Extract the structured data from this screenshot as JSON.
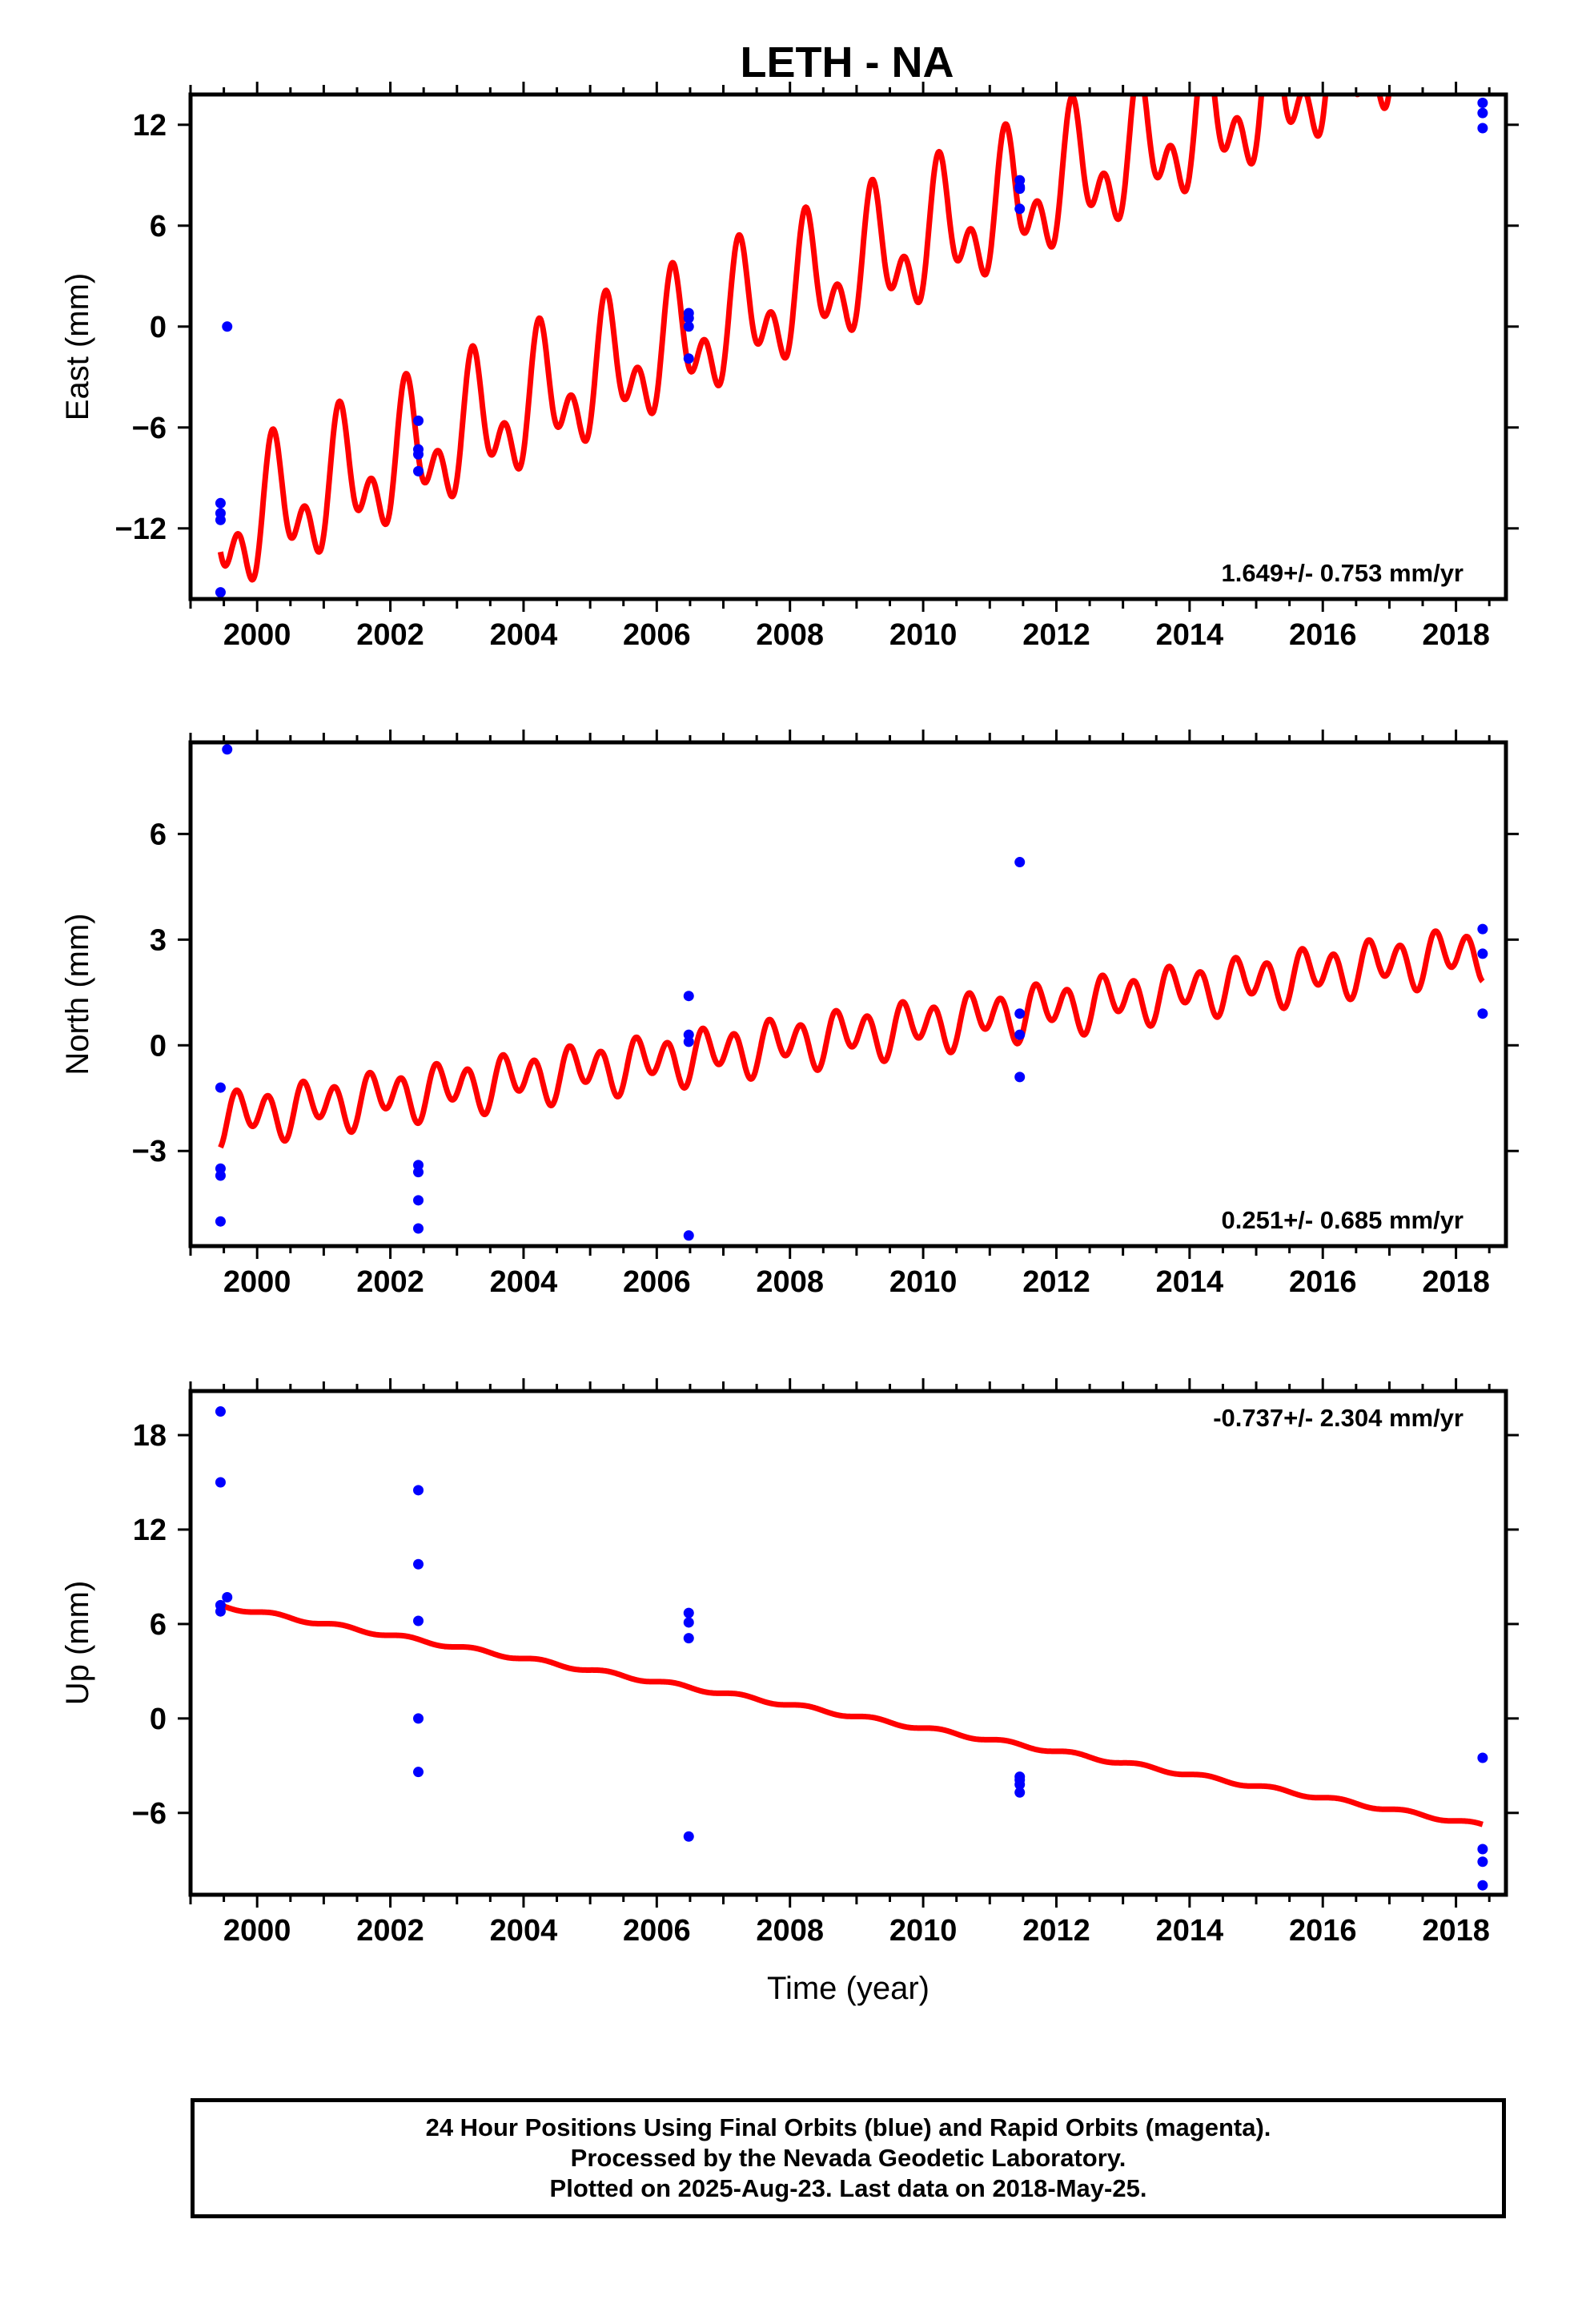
{
  "title": "LETH - NA",
  "colors": {
    "final_orbits": "#0000ff",
    "model": "#ff0000",
    "frame": "#000000"
  },
  "chart_data": [
    {
      "type": "scatter",
      "panel": "east",
      "ylabel": "East (mm)",
      "xlim": [
        1999.0,
        2018.75
      ],
      "ylim": [
        -16.2,
        13.8
      ],
      "yticks": [
        -12,
        -6,
        0,
        6,
        12
      ],
      "xticks": [
        2000,
        2002,
        2004,
        2006,
        2008,
        2010,
        2012,
        2014,
        2016,
        2018
      ],
      "rate_label": "1.649+/- 0.753 mm/yr",
      "series": [
        {
          "style": "points",
          "x": [
            1999.45,
            1999.45,
            1999.45,
            1999.45,
            1999.55,
            2002.42,
            2002.42,
            2002.42,
            2002.42,
            2006.48,
            2006.48,
            2006.48,
            2006.48,
            2011.45,
            2011.45,
            2011.45,
            2011.45,
            2018.4,
            2018.4,
            2018.4
          ],
          "y": [
            -10.5,
            -11.1,
            -11.5,
            -15.8,
            0.0,
            -5.6,
            -7.3,
            -7.6,
            -8.6,
            0.8,
            0.5,
            0.0,
            -1.9,
            8.7,
            8.2,
            8.3,
            7.0,
            13.3,
            12.7,
            11.8
          ]
        },
        {
          "style": "model",
          "x_start": 1999.45,
          "x_end": 2018.4,
          "y_at_start": -13.4,
          "rate": 1.649,
          "annual_amp": 2.8,
          "annual_phase_year": 0.02,
          "semiannual_amp": 2.3,
          "semiannual_phase_year": 0.1
        }
      ]
    },
    {
      "type": "scatter",
      "panel": "north",
      "ylabel": "North (mm)",
      "xlim": [
        1999.0,
        2018.75
      ],
      "ylim": [
        -5.7,
        8.6
      ],
      "yticks": [
        -3,
        0,
        3,
        6
      ],
      "xticks": [
        2000,
        2002,
        2004,
        2006,
        2008,
        2010,
        2012,
        2014,
        2016,
        2018
      ],
      "rate_label": "0.251+/- 0.685 mm/yr",
      "series": [
        {
          "style": "points",
          "x": [
            1999.45,
            1999.45,
            1999.45,
            1999.45,
            1999.55,
            2002.42,
            2002.42,
            2002.42,
            2002.42,
            2006.48,
            2006.48,
            2006.48,
            2006.48,
            2011.45,
            2011.45,
            2011.45,
            2011.45,
            2018.4,
            2018.4,
            2018.4
          ],
          "y": [
            -1.2,
            -3.5,
            -3.7,
            -5.0,
            8.4,
            -3.4,
            -3.6,
            -4.4,
            -5.2,
            1.4,
            0.3,
            0.1,
            -5.4,
            5.2,
            0.9,
            0.3,
            -0.9,
            3.3,
            2.6,
            0.9
          ]
        },
        {
          "style": "model",
          "x_start": 1999.45,
          "x_end": 2018.4,
          "y_at_start": -2.9,
          "rate": 0.251,
          "annual_amp": 0.3,
          "annual_phase_year": 0.6,
          "semiannual_amp": 0.6,
          "semiannual_phase_year": 0.05
        }
      ]
    },
    {
      "type": "scatter",
      "panel": "up",
      "ylabel": "Up (mm)",
      "xlabel": "Time (year)",
      "xlim": [
        1999.0,
        2018.75
      ],
      "ylim": [
        -11.2,
        20.8
      ],
      "yticks": [
        -6,
        0,
        6,
        12,
        18
      ],
      "xticks": [
        2000,
        2002,
        2004,
        2006,
        2008,
        2010,
        2012,
        2014,
        2016,
        2018
      ],
      "rate_label": "-0.737+/- 2.304 mm/yr",
      "series": [
        {
          "style": "points",
          "x": [
            1999.45,
            1999.45,
            1999.45,
            1999.45,
            1999.55,
            2002.42,
            2002.42,
            2002.42,
            2002.42,
            2002.42,
            2006.48,
            2006.48,
            2006.48,
            2006.48,
            2011.45,
            2011.45,
            2011.45,
            2011.45,
            2018.4,
            2018.4,
            2018.4,
            2018.4
          ],
          "y": [
            19.5,
            15.0,
            7.2,
            6.8,
            7.7,
            14.5,
            9.8,
            6.2,
            0.0,
            -3.4,
            6.7,
            6.1,
            5.1,
            -7.5,
            -3.7,
            -3.9,
            -4.2,
            -4.7,
            -2.5,
            -8.3,
            -9.1,
            -10.6
          ]
        },
        {
          "style": "model",
          "x_start": 1999.45,
          "x_end": 2018.4,
          "y_at_start": 7.2,
          "rate": -0.737,
          "annual_amp": 0.12,
          "annual_phase_year": 0.0,
          "semiannual_amp": 0.0,
          "semiannual_phase_year": 0.0
        }
      ]
    }
  ],
  "footer": {
    "line1": "24 Hour Positions Using Final Orbits (blue) and Rapid Orbits (magenta).",
    "line2": "Processed by the Nevada Geodetic Laboratory.",
    "line3": "Plotted on 2025-Aug-23. Last data on 2018-May-25."
  }
}
